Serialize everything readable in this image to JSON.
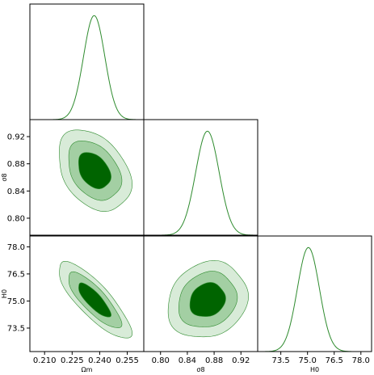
{
  "chart_data": {
    "type": "corner",
    "title": "",
    "colors": {
      "line": "#2e8b2e",
      "fill_1sigma": "#006400",
      "fill_2sigma": "#a3cfa3",
      "fill_3sigma": "#d8ebd8",
      "contour_line": "#2e8b2e"
    },
    "parameters": [
      {
        "symbol": "Ω_m",
        "label": "Ωm",
        "range": [
          0.202,
          0.264
        ],
        "ticks": [
          0.21,
          0.225,
          0.24,
          0.255
        ],
        "tick_labels": [
          "0.210",
          "0.225",
          "0.240",
          "0.255"
        ],
        "mean": 0.237,
        "sigma": 0.0058
      },
      {
        "symbol": "σ_8",
        "label": "σ8",
        "range": [
          0.775,
          0.945
        ],
        "ticks": [
          0.8,
          0.84,
          0.88,
          0.92
        ],
        "tick_labels": [
          "0.80",
          "0.84",
          "0.88",
          "0.92"
        ],
        "mean": 0.87,
        "sigma": 0.0175
      },
      {
        "symbol": "H_0",
        "label": "H0",
        "range": [
          72.2,
          78.6
        ],
        "ticks": [
          73.5,
          75.0,
          76.5,
          78.0
        ],
        "tick_labels": [
          "73.5",
          "75.0",
          "76.5",
          "78.0"
        ],
        "mean": 75.05,
        "sigma": 0.62
      }
    ],
    "correlations": [
      {
        "x": 0,
        "y": 1,
        "rho": -0.35
      },
      {
        "x": 0,
        "y": 2,
        "rho": -0.82
      },
      {
        "x": 1,
        "y": 2,
        "rho": 0.15
      }
    ],
    "contour_levels_sigma": [
      1,
      2,
      3
    ]
  }
}
